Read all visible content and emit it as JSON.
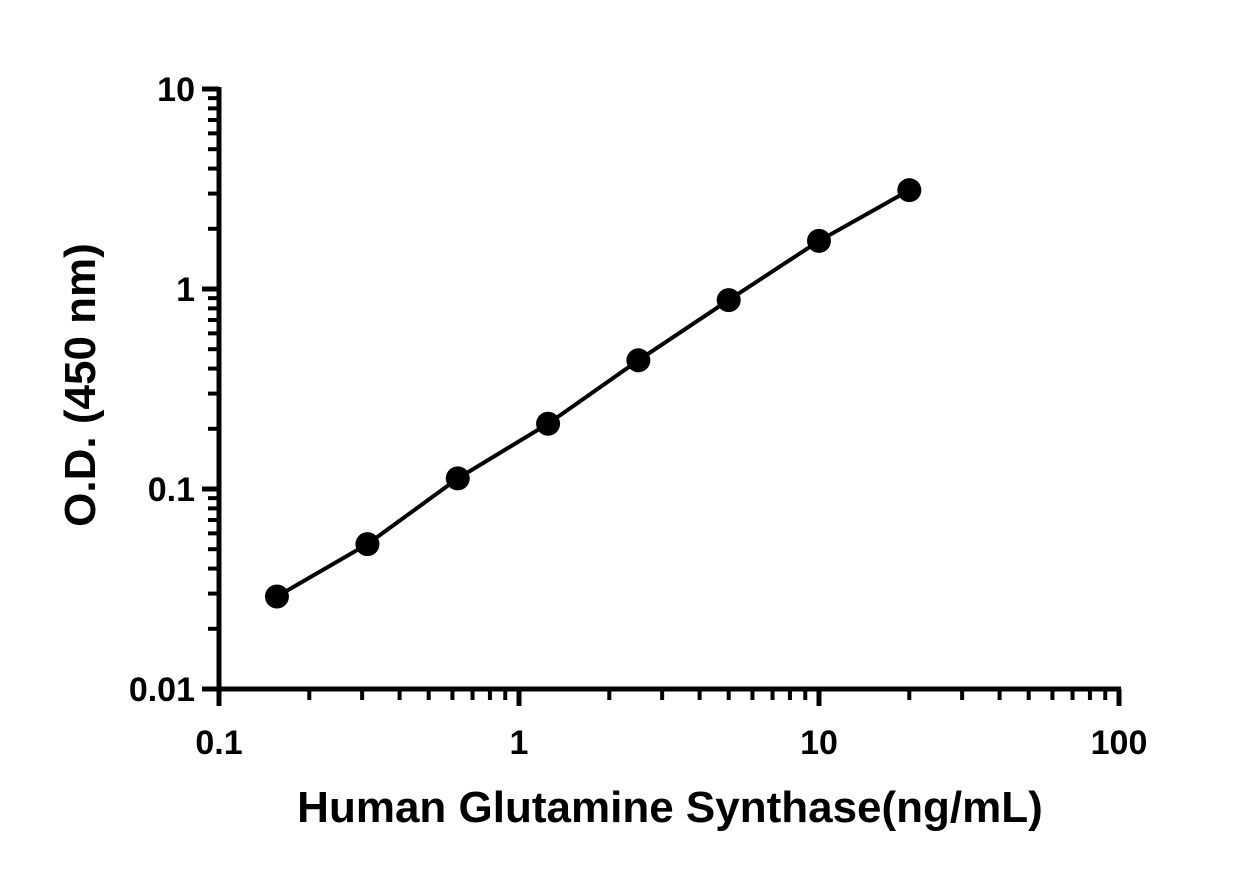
{
  "chart_data": {
    "type": "scatter",
    "title": "",
    "xlabel": "Human Glutamine Synthase(ng/mL)",
    "ylabel": "O.D. (450 nm)",
    "xscale": "log",
    "yscale": "log",
    "xlim": [
      0.1,
      100
    ],
    "ylim": [
      0.01,
      10
    ],
    "x_tick_labels": [
      "0.1",
      "1",
      "10",
      "100"
    ],
    "y_tick_labels": [
      "0.01",
      "0.1",
      "1",
      "10"
    ],
    "grid": false,
    "legend": "none",
    "fit_line": true,
    "color": "#000000",
    "series": [
      {
        "x": [
          0.156,
          0.3125,
          0.625,
          1.25,
          2.5,
          5,
          10,
          20
        ],
        "y": [
          0.029,
          0.053,
          0.113,
          0.212,
          0.44,
          0.88,
          1.74,
          3.12
        ]
      }
    ]
  }
}
